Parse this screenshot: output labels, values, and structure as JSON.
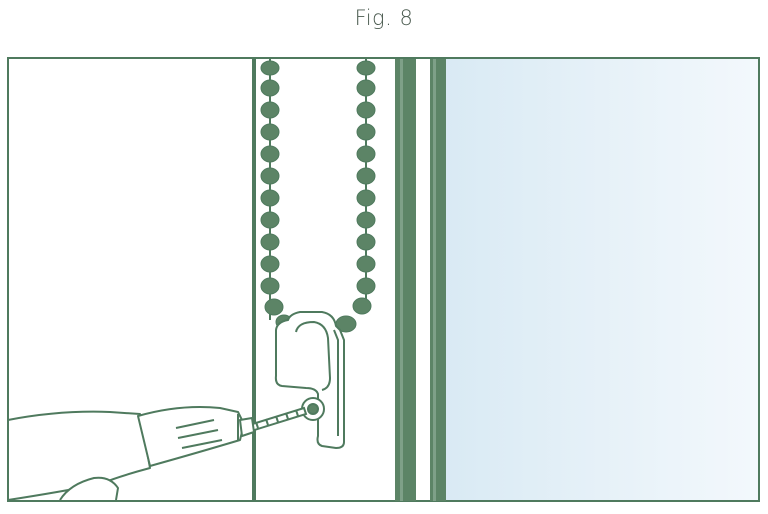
{
  "figure": {
    "label": "Fig. 8",
    "scene": [
      "window-frame",
      "window-glass",
      "bead-chain",
      "chain-safety-clip",
      "screw",
      "power-drill",
      "hand"
    ],
    "colors": {
      "line": "#4f7a5e",
      "fill": "#5c8466",
      "glass_left": "#d9eaf4",
      "glass_right": "#f3f8fc",
      "background": "#ffffff"
    }
  }
}
